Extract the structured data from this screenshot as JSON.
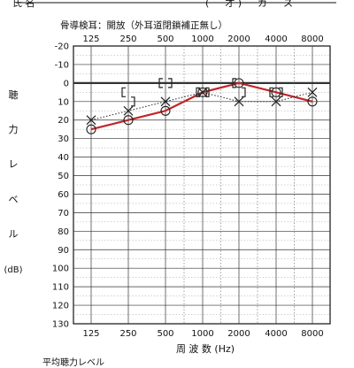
{
  "header": {
    "left": "氏 名",
    "right": "( ー 才 ) ー ガ ー ス"
  },
  "footer": {
    "text": "平均聴力レベル"
  },
  "chart_data": {
    "type": "line",
    "title": "骨導検耳：開放（外耳道閉鎖補正無し）",
    "xlabel": "周 波 数 (Hz)",
    "ylabel_chars": [
      "聴",
      "力",
      "レ",
      "ベ",
      "ル"
    ],
    "ylabel_unit": "(dB)",
    "x_top_ticks": [
      "125",
      "250",
      "500",
      "1000",
      "2000",
      "4000",
      "8000"
    ],
    "x_bottom_ticks": [
      "125",
      "250",
      "500",
      "1000",
      "2000",
      "4000",
      "8000"
    ],
    "y_ticks": [
      "-20",
      "-10",
      "0",
      "10",
      "20",
      "30",
      "40",
      "50",
      "60",
      "70",
      "80",
      "90",
      "100",
      "110",
      "120",
      "130"
    ],
    "ylim": [
      -20,
      130
    ],
    "grid": true,
    "colors": {
      "right_ear": "#c0262a",
      "marks": "#222222"
    },
    "series": [
      {
        "marker": "circle",
        "color": "#c0262a",
        "points": [
          {
            "x": "125",
            "y": 25
          },
          {
            "x": "250",
            "y": 20
          },
          {
            "x": "500",
            "y": 15
          },
          {
            "x": "1000",
            "y": 5
          },
          {
            "x": "2000",
            "y": 0
          },
          {
            "x": "4000",
            "y": 5
          },
          {
            "x": "8000",
            "y": 10
          }
        ]
      },
      {
        "marker": "cross",
        "color": "#222222",
        "points": [
          {
            "x": "125",
            "y": 20
          },
          {
            "x": "250",
            "y": 15
          },
          {
            "x": "500",
            "y": 10
          },
          {
            "x": "1000",
            "y": 5
          },
          {
            "x": "2000",
            "y": 10
          },
          {
            "x": "4000",
            "y": 10
          },
          {
            "x": "8000",
            "y": 5
          }
        ]
      },
      {
        "marker": "bracket-left",
        "color": "#222222",
        "points": [
          {
            "x": "250",
            "y": 5
          },
          {
            "x": "500",
            "y": 0
          },
          {
            "x": "1000",
            "y": 5
          },
          {
            "x": "2000",
            "y": 0
          },
          {
            "x": "4000",
            "y": 5
          }
        ]
      },
      {
        "marker": "bracket-right",
        "color": "#222222",
        "points": [
          {
            "x": "250",
            "y": 10
          },
          {
            "x": "500",
            "y": 0
          },
          {
            "x": "1000",
            "y": 5
          },
          {
            "x": "2000",
            "y": 5
          },
          {
            "x": "4000",
            "y": 5
          }
        ]
      }
    ]
  }
}
